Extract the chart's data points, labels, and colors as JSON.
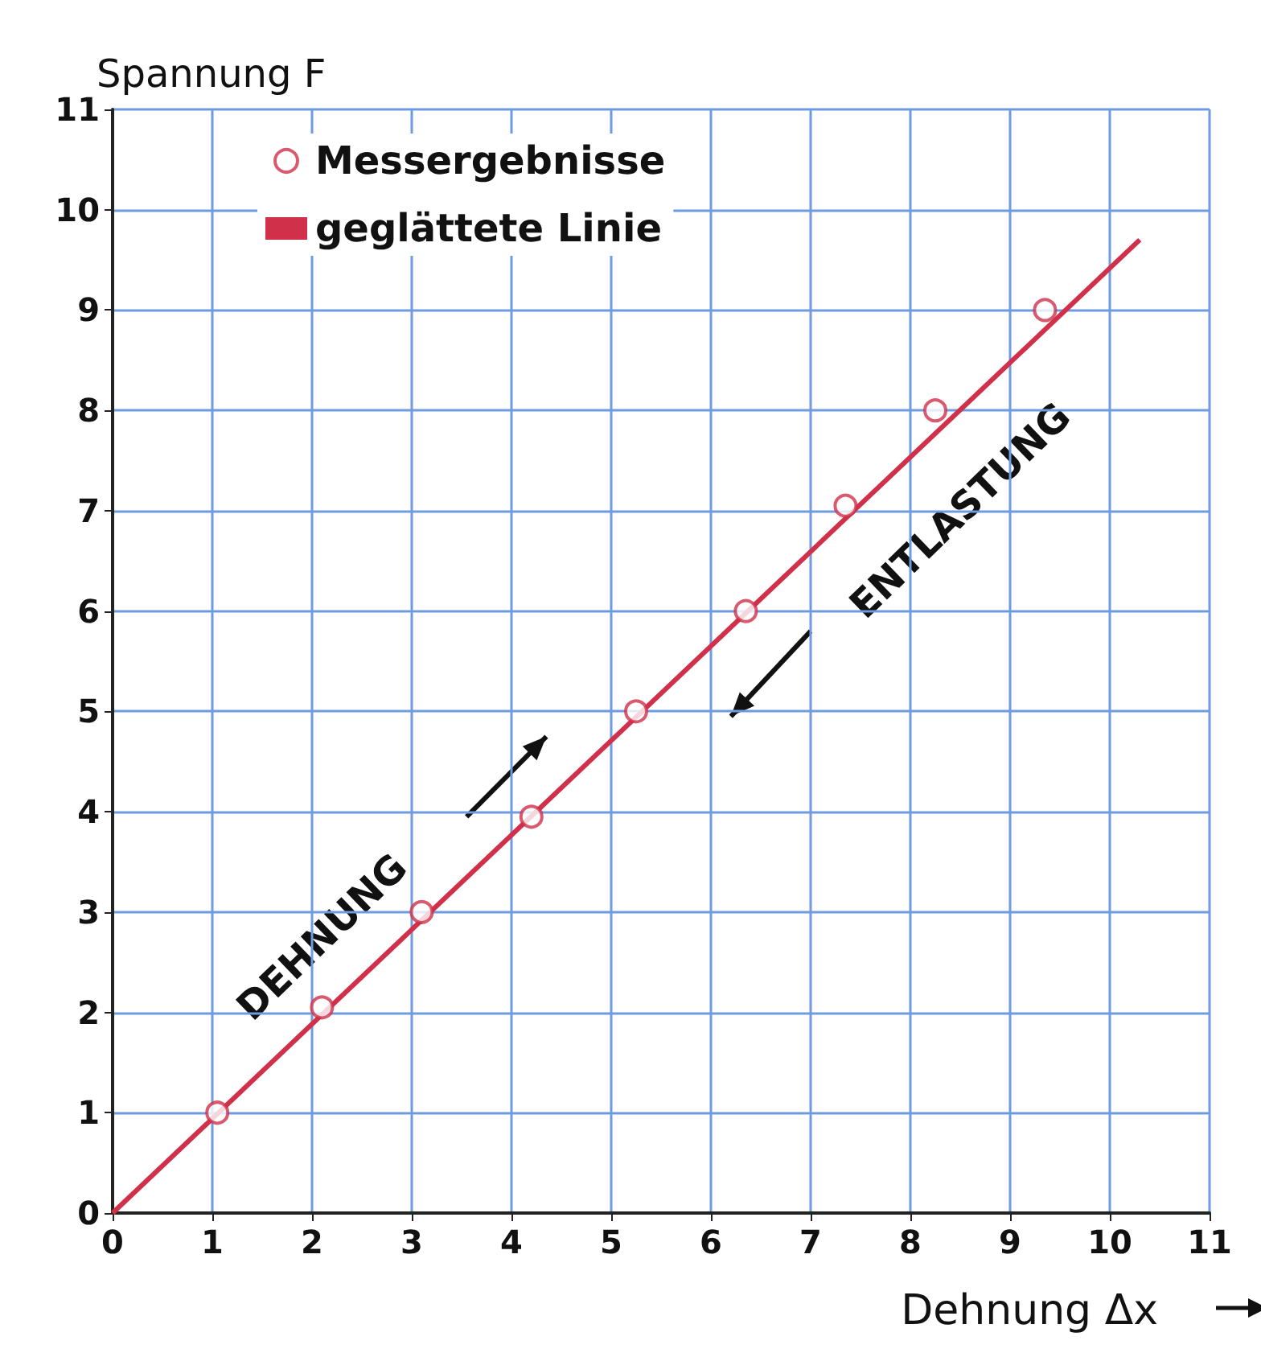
{
  "chart_data": {
    "type": "scatter",
    "xlabel": "Dehnung Δx",
    "ylabel": "Spannung F",
    "xlim": [
      0,
      11
    ],
    "ylim": [
      0,
      11
    ],
    "xticks": [
      0,
      1,
      2,
      3,
      4,
      5,
      6,
      7,
      8,
      9,
      10,
      11
    ],
    "yticks": [
      0,
      1,
      2,
      3,
      4,
      5,
      6,
      7,
      8,
      9,
      10,
      11
    ],
    "grid": true,
    "legend": "top left",
    "marker": "circle",
    "series": [
      {
        "name": "Messergebnisse",
        "type": "scatter",
        "color": "#d0304a",
        "x": [
          1.05,
          2.1,
          3.1,
          4.2,
          5.25,
          6.35,
          7.35,
          8.25,
          9.35
        ],
        "values": [
          1,
          2.05,
          3,
          3.95,
          5,
          6,
          7.05,
          8,
          9
        ]
      },
      {
        "name": "geglättete Linie",
        "type": "line",
        "color": "#d0304a",
        "marker": "none",
        "line_style": "solid",
        "x": [
          0,
          10.3
        ],
        "values": [
          0,
          9.7
        ]
      }
    ],
    "annotations": [
      "DEHNUNG",
      "ENTLASTUNG"
    ]
  }
}
